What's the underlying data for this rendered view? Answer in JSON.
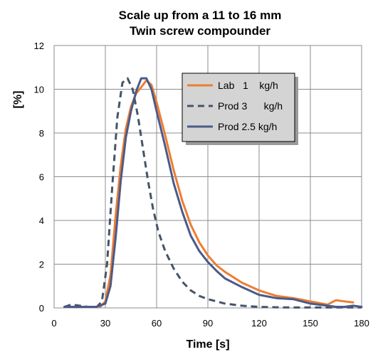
{
  "chart_data": {
    "type": "line",
    "title": [
      "Scale up from a 11 to 16 mm",
      "Twin screw compounder"
    ],
    "xlabel": "Time [s]",
    "ylabel": "[%]",
    "xlim": [
      0,
      180
    ],
    "ylim": [
      0,
      12
    ],
    "xticks": [
      "0",
      "30",
      "60",
      "90",
      "120",
      "150",
      "180"
    ],
    "yticks": [
      "0",
      "2",
      "4",
      "6",
      "8",
      "10",
      "12"
    ],
    "grid": true,
    "legend_position": "top-right",
    "series": [
      {
        "name": "Lab   1    kg/h",
        "color": "#ED7D31",
        "dash": "solid",
        "x": [
          27,
          30,
          33,
          36,
          39,
          42,
          45,
          48,
          51,
          54,
          57,
          60,
          65,
          70,
          75,
          80,
          85,
          90,
          95,
          100,
          110,
          120,
          130,
          140,
          150,
          160,
          165,
          170,
          175
        ],
        "y": [
          0.05,
          0.3,
          1.5,
          4.2,
          6.5,
          8.2,
          9.2,
          9.8,
          10.1,
          10.4,
          10.2,
          9.4,
          7.9,
          6.3,
          4.9,
          3.8,
          3.0,
          2.4,
          1.95,
          1.65,
          1.15,
          0.8,
          0.55,
          0.45,
          0.3,
          0.15,
          0.35,
          0.3,
          0.25
        ]
      },
      {
        "name": "Prod 3      kg/h",
        "color": "#44546A",
        "dash": "dashed",
        "x": [
          6,
          10,
          15,
          20,
          25,
          28,
          31,
          34,
          37,
          40,
          43,
          46,
          49,
          52,
          55,
          58,
          61,
          65,
          70,
          75,
          80,
          85,
          90,
          95,
          100,
          110,
          120,
          130,
          140,
          150,
          160,
          170,
          180
        ],
        "y": [
          0.05,
          0.15,
          0.1,
          0.05,
          0.05,
          0.3,
          2.0,
          5.5,
          8.7,
          10.3,
          10.5,
          10.0,
          8.8,
          7.3,
          5.8,
          4.5,
          3.5,
          2.6,
          1.8,
          1.2,
          0.8,
          0.55,
          0.4,
          0.3,
          0.2,
          0.1,
          0.05,
          0.03,
          0.02,
          0.02,
          0.02,
          0.02,
          0.02
        ]
      },
      {
        "name": "Prod 2.5 kg/h",
        "color": "#4A5A8A",
        "dash": "solid",
        "x": [
          6,
          15,
          25,
          30,
          33,
          36,
          39,
          42,
          45,
          48,
          51,
          54,
          57,
          60,
          65,
          70,
          75,
          80,
          85,
          90,
          95,
          100,
          110,
          120,
          130,
          140,
          145,
          150,
          155,
          160,
          165,
          170,
          175,
          180
        ],
        "y": [
          0.05,
          0.05,
          0.05,
          0.2,
          1.0,
          3.2,
          5.8,
          7.8,
          9.0,
          9.9,
          10.5,
          10.5,
          10.0,
          9.0,
          7.4,
          5.7,
          4.4,
          3.3,
          2.6,
          2.1,
          1.7,
          1.35,
          0.95,
          0.6,
          0.45,
          0.4,
          0.3,
          0.2,
          0.15,
          0.1,
          0.05,
          0.05,
          0.1,
          0.05
        ]
      }
    ]
  }
}
